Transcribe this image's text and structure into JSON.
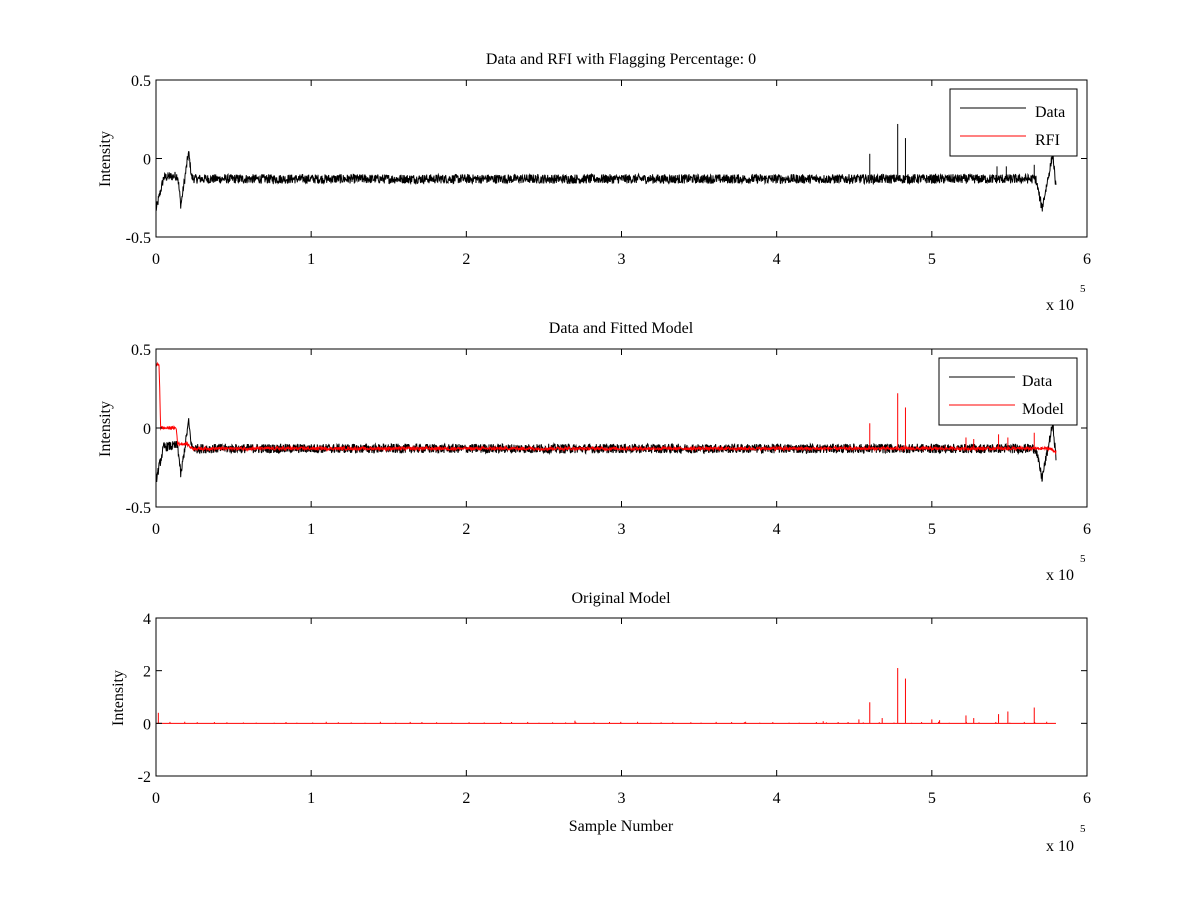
{
  "chart_data": [
    {
      "type": "line",
      "title": "Data and RFI with Flagging Percentage: 0",
      "xlabel": "",
      "ylabel": "Intensity",
      "xlim": [
        0,
        600000
      ],
      "ylim": [
        -0.5,
        0.5
      ],
      "x_ticks": [
        "0",
        "1",
        "2",
        "3",
        "4",
        "5",
        "6"
      ],
      "y_ticks": [
        "0.5",
        "0",
        "-0.5"
      ],
      "x_exponent": {
        "base": "x 10",
        "power": "5"
      },
      "legend": {
        "position": "top-right",
        "entries": [
          "Data",
          "RFI"
        ]
      },
      "series": [
        {
          "name": "Data",
          "color": "#000000",
          "baseline": -0.13,
          "noise_amplitude": 0.03,
          "x_end": 580000,
          "features": [
            {
              "x": 0,
              "y": -0.33
            },
            {
              "x": 5000,
              "y": -0.12
            },
            {
              "x": 14000,
              "y": -0.11
            },
            {
              "x": 16000,
              "y": -0.3
            },
            {
              "x": 21000,
              "y": 0.04
            },
            {
              "x": 23000,
              "y": -0.12
            },
            {
              "x": 571000,
              "y": -0.32
            },
            {
              "x": 578000,
              "y": 0.03
            },
            {
              "x": 580000,
              "y": -0.19
            }
          ],
          "spikes": [
            {
              "x": 460000,
              "y": 0.03
            },
            {
              "x": 478000,
              "y": 0.22
            },
            {
              "x": 483000,
              "y": 0.13
            },
            {
              "x": 542000,
              "y": -0.05
            },
            {
              "x": 548000,
              "y": -0.05
            },
            {
              "x": 566000,
              "y": -0.04
            }
          ]
        },
        {
          "name": "RFI",
          "color": "#ff0000",
          "values": []
        }
      ]
    },
    {
      "type": "line",
      "title": "Data and Fitted Model",
      "xlabel": "",
      "ylabel": "Intensity",
      "xlim": [
        0,
        600000
      ],
      "ylim": [
        -0.5,
        0.5
      ],
      "x_ticks": [
        "0",
        "1",
        "2",
        "3",
        "4",
        "5",
        "6"
      ],
      "y_ticks": [
        "0.5",
        "0",
        "-0.5"
      ],
      "x_exponent": {
        "base": "x 10",
        "power": "5"
      },
      "legend": {
        "position": "top-right",
        "entries": [
          "Data",
          "Model"
        ]
      },
      "series": [
        {
          "name": "Data",
          "color": "#000000",
          "baseline": -0.13,
          "noise_amplitude": 0.03,
          "x_end": 580000,
          "features": [
            {
              "x": 0,
              "y": -0.33
            },
            {
              "x": 5000,
              "y": -0.12
            },
            {
              "x": 14000,
              "y": -0.11
            },
            {
              "x": 16000,
              "y": -0.3
            },
            {
              "x": 21000,
              "y": 0.04
            },
            {
              "x": 23000,
              "y": -0.12
            },
            {
              "x": 571000,
              "y": -0.32
            },
            {
              "x": 578000,
              "y": 0.03
            },
            {
              "x": 580000,
              "y": -0.19
            }
          ],
          "spikes": []
        },
        {
          "name": "Model",
          "color": "#ff0000",
          "baseline": -0.13,
          "noise_amplitude": 0.01,
          "x_end": 580000,
          "features": [
            {
              "x": 0,
              "y": 0.4
            },
            {
              "x": 2000,
              "y": 0.4
            },
            {
              "x": 3000,
              "y": 0.0
            },
            {
              "x": 13000,
              "y": 0.0
            },
            {
              "x": 14000,
              "y": -0.1
            },
            {
              "x": 20000,
              "y": -0.1
            },
            {
              "x": 22000,
              "y": -0.12
            },
            {
              "x": 580000,
              "y": -0.15
            }
          ],
          "spikes": [
            {
              "x": 460000,
              "y": 0.03
            },
            {
              "x": 478000,
              "y": 0.22
            },
            {
              "x": 483000,
              "y": 0.13
            },
            {
              "x": 522000,
              "y": -0.06
            },
            {
              "x": 527000,
              "y": -0.07
            },
            {
              "x": 543000,
              "y": -0.04
            },
            {
              "x": 549000,
              "y": -0.06
            },
            {
              "x": 566000,
              "y": -0.03
            }
          ]
        }
      ]
    },
    {
      "type": "line",
      "title": "Original Model",
      "xlabel": "Sample Number",
      "ylabel": "Intensity",
      "xlim": [
        0,
        600000
      ],
      "ylim": [
        -2,
        4
      ],
      "x_ticks": [
        "0",
        "1",
        "2",
        "3",
        "4",
        "5",
        "6"
      ],
      "y_ticks": [
        "4",
        "2",
        "0",
        "-2"
      ],
      "x_exponent": {
        "base": "x 10",
        "power": "5"
      },
      "legend": null,
      "series": [
        {
          "name": "Model",
          "color": "#ff0000",
          "baseline": 0,
          "x_end": 580000,
          "spikes": [
            {
              "x": 1500,
              "y": 0.4
            },
            {
              "x": 460000,
              "y": 0.8
            },
            {
              "x": 478000,
              "y": 2.1
            },
            {
              "x": 483000,
              "y": 1.7
            },
            {
              "x": 453000,
              "y": 0.15
            },
            {
              "x": 468000,
              "y": 0.2
            },
            {
              "x": 500000,
              "y": 0.15
            },
            {
              "x": 505000,
              "y": 0.12
            },
            {
              "x": 522000,
              "y": 0.3
            },
            {
              "x": 527000,
              "y": 0.2
            },
            {
              "x": 543000,
              "y": 0.35
            },
            {
              "x": 549000,
              "y": 0.45
            },
            {
              "x": 566000,
              "y": 0.6
            },
            {
              "x": 270000,
              "y": 0.1
            },
            {
              "x": 380000,
              "y": 0.06
            },
            {
              "x": 430000,
              "y": 0.08
            }
          ],
          "minor_spike_height": 0.04,
          "minor_spike_spacing": 9000
        }
      ]
    }
  ]
}
